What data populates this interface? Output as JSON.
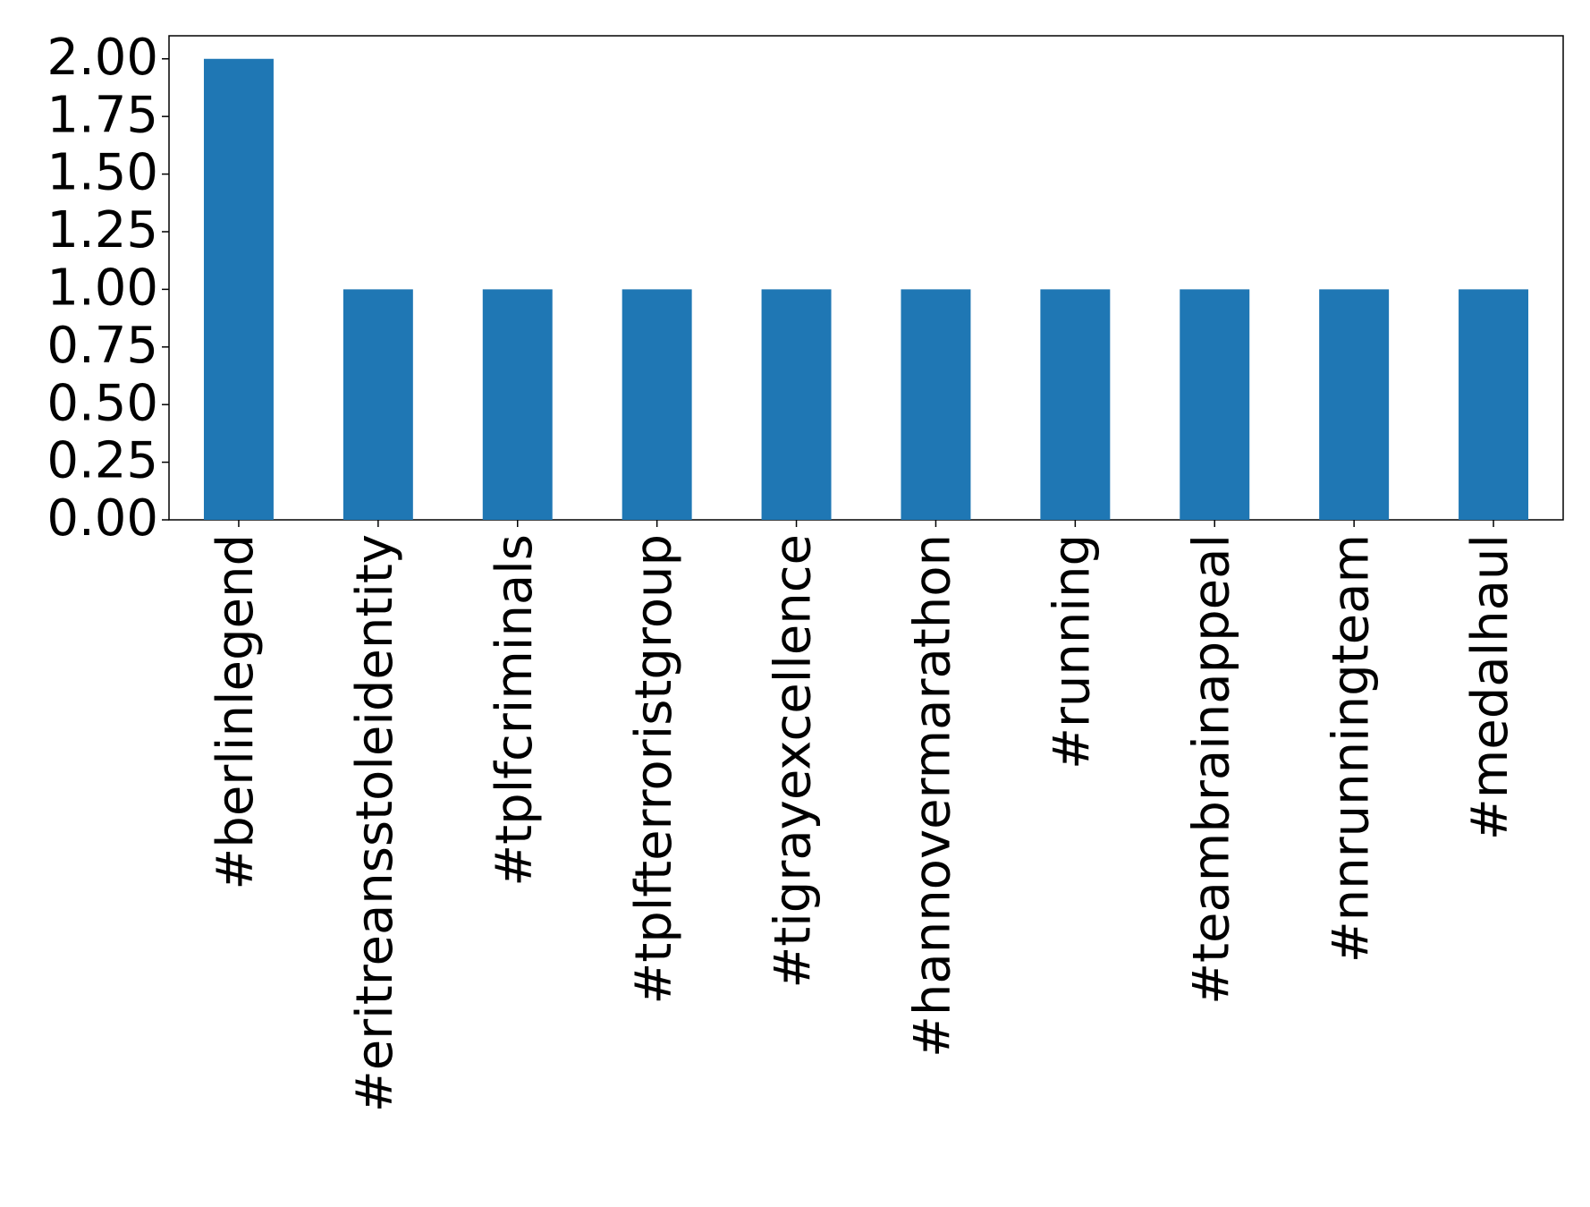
{
  "chart_data": {
    "type": "bar",
    "categories": [
      "#berlinlegend",
      "#eritreansstoleidentity",
      "#tplfcriminals",
      "#tplfterroristgroup",
      "#tigrayexcellence",
      "#hannovermarathon",
      "#running",
      "#teambrainappeal",
      "#nnrunningteam",
      "#medalhaul"
    ],
    "values": [
      2,
      1,
      1,
      1,
      1,
      1,
      1,
      1,
      1,
      1
    ],
    "color": "#1f77b4",
    "ylim": [
      0,
      2.1
    ],
    "yticks": [
      {
        "value": 0,
        "label": "0.00"
      },
      {
        "value": 0.25,
        "label": "0.25"
      },
      {
        "value": 0.5,
        "label": "0.50"
      },
      {
        "value": 0.75,
        "label": "0.75"
      },
      {
        "value": 1,
        "label": "1.00"
      },
      {
        "value": 1.25,
        "label": "1.25"
      },
      {
        "value": 1.5,
        "label": "1.50"
      },
      {
        "value": 1.75,
        "label": "1.75"
      },
      {
        "value": 2,
        "label": "2.00"
      }
    ],
    "grid": false
  }
}
